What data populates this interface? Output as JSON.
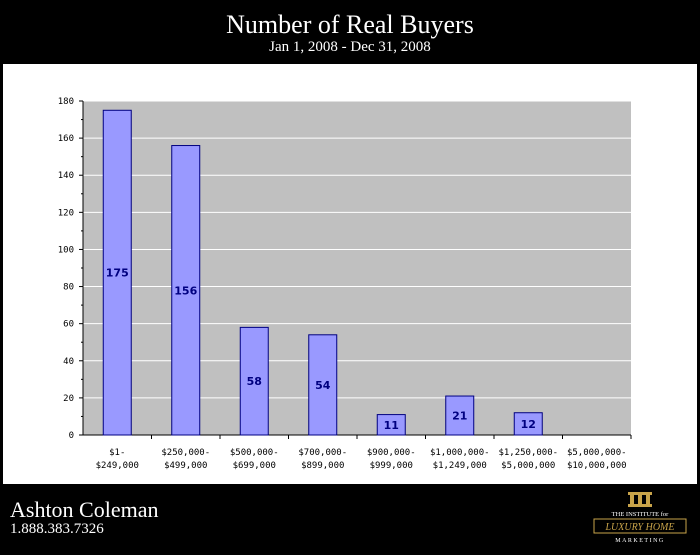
{
  "header": {
    "title": "Number of Real Buyers",
    "subtitle": "Jan 1, 2008 - Dec 31, 2008"
  },
  "footer": {
    "agent_name": "Ashton Coleman",
    "phone": "1.888.383.7326",
    "logo_text": {
      "line1": "THE INSTITUTE for",
      "line2": "LUXURY HOME",
      "line3": "MARKETING"
    }
  },
  "colors": {
    "bar_fill": "#9999ff",
    "bar_stroke": "#000080",
    "plot_bg": "#c0c0c0",
    "page_bg": "#000000",
    "logo_gold": "#c9a44a"
  },
  "chart_data": {
    "type": "bar",
    "title": "Number of Real Buyers",
    "subtitle": "Jan 1, 2008 - Dec 31, 2008",
    "categories": [
      [
        "$1-",
        "$249,000"
      ],
      [
        "$250,000-",
        "$499,000"
      ],
      [
        "$500,000-",
        "$699,000"
      ],
      [
        "$700,000-",
        "$899,000"
      ],
      [
        "$900,000-",
        "$999,000"
      ],
      [
        "$1,000,000-",
        "$1,249,000"
      ],
      [
        "$1,250,000-",
        "$5,000,000"
      ],
      [
        "$5,000,000-",
        "$10,000,000"
      ]
    ],
    "values": [
      175,
      156,
      58,
      54,
      11,
      21,
      12,
      0
    ],
    "data_labels": [
      "175",
      "156",
      "58",
      "54",
      "11",
      "21",
      "12",
      ""
    ],
    "ylim": [
      0,
      180
    ],
    "yticks": [
      0,
      20,
      40,
      60,
      80,
      100,
      120,
      140,
      160,
      180
    ],
    "grid": true,
    "legend": "none"
  }
}
